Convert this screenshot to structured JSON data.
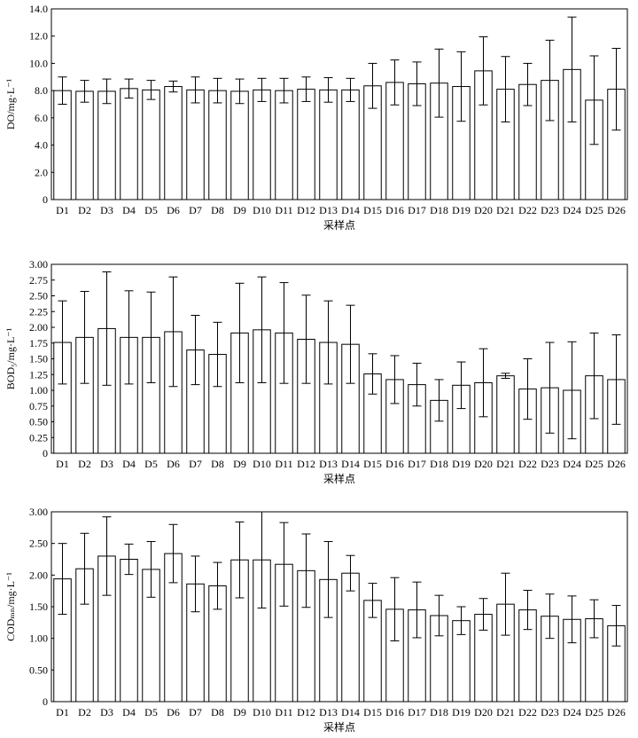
{
  "chart_data": [
    {
      "type": "bar",
      "ylabel": "DO/mg·L⁻¹",
      "xlabel": "采样点",
      "ylim": [
        0,
        14
      ],
      "ytick_values": [
        0,
        2,
        4,
        6,
        8,
        10,
        12,
        14
      ],
      "ytick_labels": [
        "0",
        "2.0",
        "4.0",
        "6.0",
        "8.0",
        "10.0",
        "12.0",
        "14.0"
      ],
      "categories": [
        "D1",
        "D2",
        "D3",
        "D4",
        "D5",
        "D6",
        "D7",
        "D8",
        "D9",
        "D10",
        "D11",
        "D12",
        "D13",
        "D14",
        "D15",
        "D16",
        "D17",
        "D18",
        "D19",
        "D20",
        "D21",
        "D22",
        "D23",
        "D24",
        "D25",
        "D26"
      ],
      "values": [
        8.0,
        7.95,
        7.95,
        8.15,
        8.05,
        8.3,
        8.05,
        8.0,
        7.95,
        8.05,
        8.0,
        8.1,
        8.05,
        8.05,
        8.35,
        8.6,
        8.5,
        8.55,
        8.3,
        9.45,
        8.1,
        8.45,
        8.75,
        9.55,
        7.3,
        8.1
      ],
      "errors": [
        1.0,
        0.8,
        0.9,
        0.7,
        0.7,
        0.4,
        0.95,
        0.9,
        0.9,
        0.85,
        0.9,
        0.9,
        0.9,
        0.85,
        1.65,
        1.65,
        1.6,
        2.5,
        2.55,
        2.5,
        2.4,
        1.55,
        2.95,
        3.85,
        3.25,
        3.0
      ]
    },
    {
      "type": "bar",
      "ylabel": "BOD₅/mg·L⁻¹",
      "xlabel": "采样点",
      "ylim": [
        0,
        3
      ],
      "ytick_values": [
        0,
        0.25,
        0.5,
        0.75,
        1.0,
        1.25,
        1.5,
        1.75,
        2.0,
        2.25,
        2.5,
        2.75,
        3.0
      ],
      "ytick_labels": [
        "0",
        "0.25",
        "0.50",
        "0.75",
        "1.00",
        "1.25",
        "1.50",
        "1.75",
        "2.00",
        "2.25",
        "2.50",
        "2.75",
        "3.00"
      ],
      "categories": [
        "D1",
        "D2",
        "D3",
        "D4",
        "D5",
        "D6",
        "D7",
        "D8",
        "D9",
        "D10",
        "D11",
        "D12",
        "D13",
        "D14",
        "D15",
        "D16",
        "D17",
        "D18",
        "D19",
        "D20",
        "D21",
        "D22",
        "D23",
        "D24",
        "D25",
        "D26"
      ],
      "values": [
        1.76,
        1.84,
        1.98,
        1.84,
        1.84,
        1.93,
        1.64,
        1.57,
        1.91,
        1.96,
        1.91,
        1.81,
        1.76,
        1.73,
        1.26,
        1.17,
        1.09,
        0.84,
        1.08,
        1.12,
        1.23,
        1.02,
        1.04,
        1.0,
        1.23,
        1.17
      ],
      "errors": [
        0.66,
        0.73,
        0.9,
        0.74,
        0.72,
        0.87,
        0.55,
        0.51,
        0.79,
        0.84,
        0.8,
        0.7,
        0.66,
        0.62,
        0.32,
        0.38,
        0.34,
        0.33,
        0.37,
        0.54,
        0.04,
        0.48,
        0.72,
        0.77,
        0.68,
        0.71
      ]
    },
    {
      "type": "bar",
      "ylabel": "CODₘₙ/mg·L⁻¹",
      "xlabel": "采样点",
      "ylim": [
        0,
        3
      ],
      "ytick_values": [
        0,
        0.5,
        1.0,
        1.5,
        2.0,
        2.5,
        3.0
      ],
      "ytick_labels": [
        "0",
        "0.50",
        "1.00",
        "1.50",
        "2.00",
        "2.50",
        "3.00"
      ],
      "categories": [
        "D1",
        "D2",
        "D3",
        "D4",
        "D5",
        "D6",
        "D7",
        "D8",
        "D9",
        "D10",
        "D11",
        "D12",
        "D13",
        "D14",
        "D15",
        "D16",
        "D17",
        "D18",
        "D19",
        "D20",
        "D21",
        "D22",
        "D23",
        "D24",
        "D25",
        "D26"
      ],
      "values": [
        1.94,
        2.1,
        2.3,
        2.25,
        2.09,
        2.34,
        1.86,
        1.83,
        2.24,
        2.24,
        2.17,
        2.07,
        1.93,
        2.03,
        1.6,
        1.46,
        1.45,
        1.36,
        1.28,
        1.38,
        1.54,
        1.45,
        1.35,
        1.3,
        1.31,
        1.2
      ],
      "errors": [
        0.56,
        0.56,
        0.62,
        0.24,
        0.44,
        0.46,
        0.44,
        0.37,
        0.6,
        0.76,
        0.66,
        0.58,
        0.6,
        0.28,
        0.27,
        0.5,
        0.44,
        0.32,
        0.22,
        0.25,
        0.49,
        0.31,
        0.35,
        0.37,
        0.3,
        0.32
      ]
    }
  ]
}
